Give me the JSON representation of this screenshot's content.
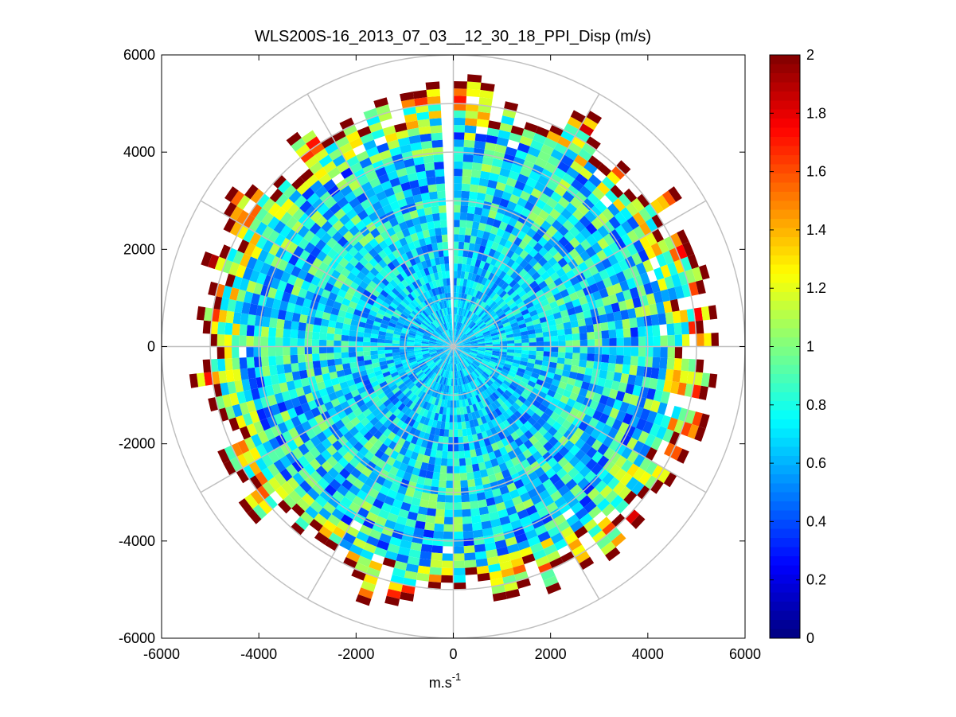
{
  "chart_data": {
    "type": "heatmap",
    "subtype": "polar-ppi",
    "title": "WLS200S-16_2013_07_03__12_30_18_PPI_Disp (m/s)",
    "xlabel": "m.s",
    "xlabel_superscript": "-1",
    "ylabel": "",
    "xlim": [
      -6000,
      6000
    ],
    "ylim": [
      -6000,
      6000
    ],
    "x_ticks": [
      -6000,
      -4000,
      -2000,
      0,
      2000,
      4000,
      6000
    ],
    "y_ticks": [
      6000,
      4000,
      2000,
      0,
      -2000,
      -4000,
      -6000
    ],
    "x_tick_labels": [
      "-6000",
      "-4000",
      "-2000",
      "0",
      "2000",
      "4000",
      "6000"
    ],
    "y_tick_labels": [
      "6000",
      "4000",
      "2000",
      "0",
      "-2000",
      "-4000",
      "-6000"
    ],
    "polar_grid": {
      "range_rings": [
        1000,
        2000,
        3000,
        4000,
        5000,
        6000
      ],
      "radial_spokes_deg": [
        0,
        30,
        60,
        90,
        120,
        150,
        180,
        210,
        240,
        270,
        300,
        330
      ]
    },
    "data_extent": {
      "max_range": 6000,
      "azimuth_step_deg": 3,
      "range_step": 150,
      "gap_azimuths_deg": [
        [
          -3,
          0
        ]
      ]
    },
    "colorbar": {
      "colormap": "jet",
      "clim": [
        0,
        2
      ],
      "ticks": [
        0,
        0.2,
        0.4,
        0.6,
        0.8,
        1,
        1.2,
        1.4,
        1.6,
        1.8,
        2
      ],
      "tick_labels": [
        "0",
        "0.2",
        "0.4",
        "0.6",
        "0.8",
        "1",
        "1.2",
        "1.4",
        "1.6",
        "1.8",
        "2"
      ]
    },
    "value_profile": {
      "near_range_mean": 0.65,
      "mid_range_mean": 0.72,
      "far_range_mean": 1.6,
      "edge_value": 2
    }
  }
}
